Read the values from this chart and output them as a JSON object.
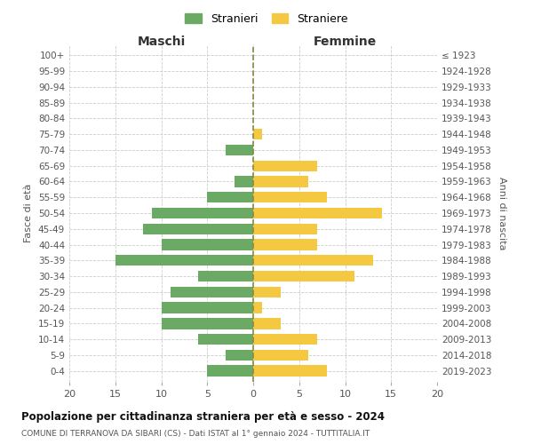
{
  "age_groups": [
    "0-4",
    "5-9",
    "10-14",
    "15-19",
    "20-24",
    "25-29",
    "30-34",
    "35-39",
    "40-44",
    "45-49",
    "50-54",
    "55-59",
    "60-64",
    "65-69",
    "70-74",
    "75-79",
    "80-84",
    "85-89",
    "90-94",
    "95-99",
    "100+"
  ],
  "birth_years": [
    "2019-2023",
    "2014-2018",
    "2009-2013",
    "2004-2008",
    "1999-2003",
    "1994-1998",
    "1989-1993",
    "1984-1988",
    "1979-1983",
    "1974-1978",
    "1969-1973",
    "1964-1968",
    "1959-1963",
    "1954-1958",
    "1949-1953",
    "1944-1948",
    "1939-1943",
    "1934-1938",
    "1929-1933",
    "1924-1928",
    "≤ 1923"
  ],
  "males": [
    5,
    3,
    6,
    10,
    10,
    9,
    6,
    15,
    10,
    12,
    11,
    5,
    2,
    0,
    3,
    0,
    0,
    0,
    0,
    0,
    0
  ],
  "females": [
    8,
    6,
    7,
    3,
    1,
    3,
    11,
    13,
    7,
    7,
    14,
    8,
    6,
    7,
    0,
    1,
    0,
    0,
    0,
    0,
    0
  ],
  "male_color": "#6aaa64",
  "female_color": "#f5c842",
  "background_color": "#ffffff",
  "grid_color": "#cccccc",
  "title": "Popolazione per cittadinanza straniera per età e sesso - 2024",
  "subtitle": "COMUNE DI TERRANOVA DA SIBARI (CS) - Dati ISTAT al 1° gennaio 2024 - TUTTITALIA.IT",
  "ylabel_left": "Fasce di età",
  "ylabel_right": "Anni di nascita",
  "xlabel_left": "Maschi",
  "xlabel_right": "Femmine",
  "legend_stranieri": "Stranieri",
  "legend_straniere": "Straniere",
  "xlim": 20,
  "bar_height": 0.7
}
